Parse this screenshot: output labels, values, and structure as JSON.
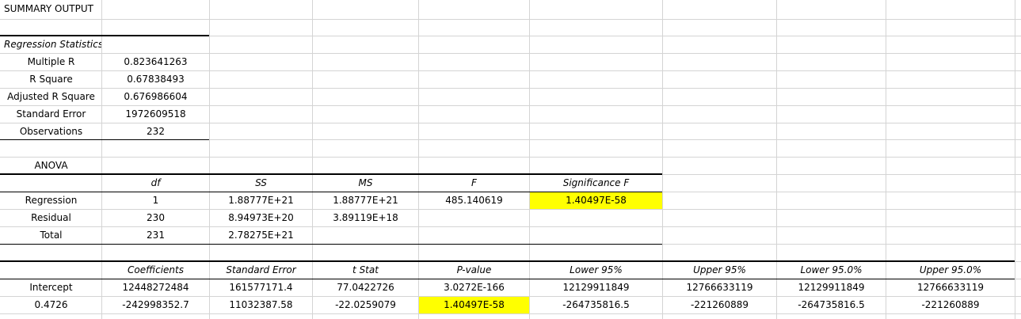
{
  "title": "SUMMARY OUTPUT",
  "regression_statistics": {
    "heading": "Regression Statistics",
    "rows": [
      {
        "label": "Multiple R",
        "value": "0.823641263"
      },
      {
        "label": "R Square",
        "value": "0.67838493"
      },
      {
        "label": "Adjusted R Square",
        "value": "0.676986604"
      },
      {
        "label": "Standard Error",
        "value": "1972609518"
      },
      {
        "label": "Observations",
        "value": "232"
      }
    ]
  },
  "anova": {
    "heading": "ANOVA",
    "headers": [
      "",
      "df",
      "SS",
      "MS",
      "F",
      "Significance F"
    ],
    "rows": [
      [
        "Regression",
        "1",
        "1.88777E+21",
        "1.88777E+21",
        "485.140619",
        "1.40497E-58"
      ],
      [
        "Residual",
        "230",
        "8.94973E+20",
        "3.89119E+18",
        "",
        ""
      ],
      [
        "Total",
        "231",
        "2.78275E+21",
        "",
        "",
        ""
      ]
    ]
  },
  "coefficients": {
    "headers": [
      "",
      "Coefficients",
      "Standard Error",
      "t Stat",
      "P-value",
      "Lower 95%",
      "Upper 95%",
      "Lower 95.0%",
      "Upper 95.0%"
    ],
    "rows": [
      [
        "Intercept",
        "12448272484",
        "161577171.4",
        "77.0422726",
        "3.0272E-166",
        "12129911849",
        "12766633119",
        "12129911849",
        "12766633119"
      ],
      [
        "0.4726",
        "-242998352.7",
        "11032387.58",
        "-22.0259079",
        "1.40497E-58",
        "-264735816.5",
        "-221260889",
        "-264735816.5",
        "-221260889"
      ]
    ]
  },
  "colors": {
    "highlight": "#ffff00",
    "gridline": "#d4d4d4",
    "border": "#000000"
  }
}
